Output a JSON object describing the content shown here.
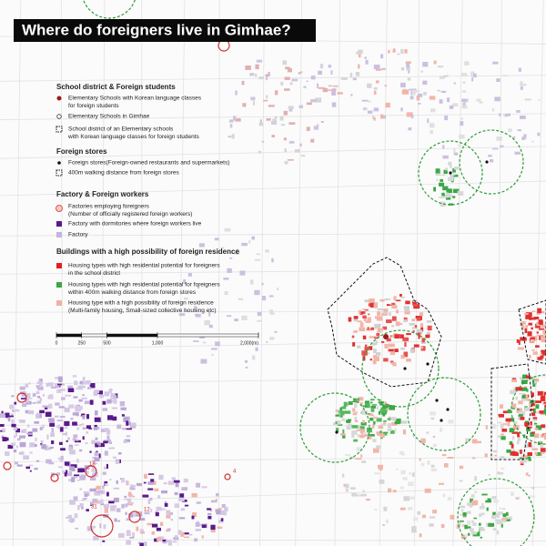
{
  "header": {
    "title": "Where do foreigners live in Gimhae?"
  },
  "legend": [
    {
      "heading": "School district & Foreign students",
      "items": [
        {
          "lines": [
            "Elementary Schools with Korean language classes",
            "for foreign students"
          ]
        },
        {
          "lines": [
            "Elementary Schools in Gimhae"
          ]
        },
        {
          "lines": [
            "School district of an Elementary schools",
            "with Korean language classes for foreign students"
          ]
        }
      ]
    },
    {
      "heading": "Foreign stores",
      "items": [
        {
          "lines": [
            "Foreign stores(Foreign-owned restaurants and supermarkets)"
          ]
        },
        {
          "lines": [
            "400m walking distance from foreign stores"
          ]
        }
      ]
    },
    {
      "heading": "Factory & Foreign workers",
      "items": [
        {
          "lines": [
            "Factories employing foreigners",
            "(Number of officially registered foreign workers)"
          ]
        },
        {
          "lines": [
            "Factory with dormitories where foreign workers live"
          ]
        },
        {
          "lines": [
            "Factory"
          ]
        }
      ]
    },
    {
      "heading": "Buildings with a high possibility of foreign residence",
      "items": [
        {
          "lines": [
            "Housing types with high residential potential for foreigners",
            "in the school district"
          ]
        },
        {
          "lines": [
            "Housing types with high residential potential for foreigners",
            "within 400m walking distance from foreign stores"
          ]
        },
        {
          "lines": [
            "Housing type with a high possibility of foreign residence",
            "(Multi-family housing, Small-sized collective housing etc)"
          ]
        }
      ]
    }
  ],
  "scale_bar": {
    "ticks": [
      {
        "value": 0,
        "label": "0"
      },
      {
        "value": 250,
        "label": "250"
      },
      {
        "value": 500,
        "label": "500"
      },
      {
        "value": 1000,
        "label": "1,000"
      },
      {
        "value": 2000,
        "label": "2,000(m)"
      }
    ]
  },
  "map_labels": [
    "31",
    "12",
    "18",
    "4"
  ]
}
